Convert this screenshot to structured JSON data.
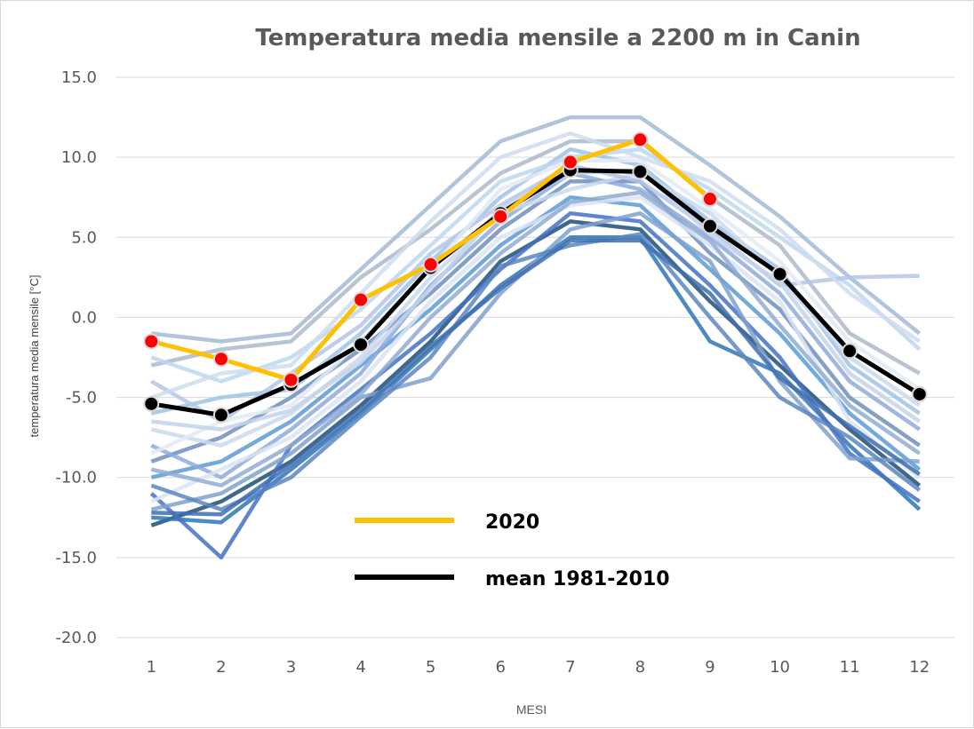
{
  "chart_data": {
    "type": "line",
    "title": "Temperatura media mensile a 2200 m in Canin",
    "xlabel": "MESI",
    "ylabel": "temperatura media mensile [°C]",
    "categories": [
      "1",
      "2",
      "3",
      "4",
      "5",
      "6",
      "7",
      "8",
      "9",
      "10",
      "11",
      "12"
    ],
    "ylim": [
      -20,
      15
    ],
    "yticks": [
      "15.0",
      "10.0",
      "5.0",
      "0.0",
      "-5.0",
      "-10.0",
      "-15.0",
      "-20.0"
    ],
    "grid": true,
    "legend_position": "lower-center",
    "series": [
      {
        "name": "2020",
        "color": "#ffc000",
        "marker_color": "#ff0000",
        "values": [
          -1.5,
          -2.6,
          -3.9,
          1.1,
          3.3,
          6.3,
          9.7,
          11.1,
          7.4,
          null,
          null,
          null
        ]
      },
      {
        "name": "mean 1981-2010",
        "color": "#000000",
        "marker_color": "#000000",
        "values": [
          -5.4,
          -6.1,
          -4.2,
          -1.7,
          3.1,
          6.5,
          9.2,
          9.1,
          5.7,
          2.7,
          -2.1,
          -4.8
        ]
      }
    ],
    "background_series": [
      {
        "color": "#1f4e79",
        "values": [
          -13.0,
          -11.5,
          -9.0,
          -5.5,
          -1.5,
          3.5,
          6.0,
          5.5,
          1.0,
          -3.0,
          -7.0,
          -10.5
        ]
      },
      {
        "color": "#2e75b6",
        "values": [
          -12.5,
          -12.8,
          -9.5,
          -6.0,
          -2.0,
          2.0,
          5.0,
          5.0,
          -1.5,
          -3.5,
          -8.0,
          -12.0
        ]
      },
      {
        "color": "#4472c4",
        "values": [
          -11.0,
          -15.0,
          -8.0,
          -4.5,
          -1.0,
          3.0,
          6.5,
          6.0,
          2.0,
          -2.5,
          -8.5,
          -11.5
        ]
      },
      {
        "color": "#5b9bd5",
        "values": [
          -10.0,
          -9.0,
          -6.5,
          -3.0,
          0.5,
          4.5,
          7.5,
          7.0,
          3.0,
          -1.0,
          -6.0,
          -9.5
        ]
      },
      {
        "color": "#6f8fbf",
        "values": [
          -9.0,
          -7.5,
          -5.0,
          -2.0,
          1.5,
          5.5,
          8.5,
          8.5,
          4.0,
          0.5,
          -5.0,
          -8.0
        ]
      },
      {
        "color": "#8faadc",
        "values": [
          -8.0,
          -10.0,
          -7.0,
          -3.5,
          2.0,
          6.0,
          9.0,
          8.0,
          5.0,
          1.5,
          -4.0,
          -7.0
        ]
      },
      {
        "color": "#9dc3e6",
        "values": [
          -6.0,
          -5.0,
          -4.5,
          -1.0,
          3.5,
          7.5,
          10.5,
          9.5,
          6.0,
          3.0,
          -3.0,
          -6.0
        ]
      },
      {
        "color": "#adb9ca",
        "values": [
          -3.0,
          -2.0,
          -1.5,
          2.5,
          5.5,
          9.0,
          11.0,
          11.0,
          7.5,
          4.5,
          -1.0,
          -3.5
        ]
      },
      {
        "color": "#bdd7ee",
        "values": [
          -2.5,
          -4.0,
          -2.5,
          0.5,
          4.5,
          8.5,
          10.0,
          10.5,
          8.0,
          5.0,
          2.0,
          -2.0
        ]
      },
      {
        "color": "#c9d9ef",
        "values": [
          -7.0,
          -8.0,
          -6.0,
          -2.5,
          2.5,
          6.5,
          8.0,
          9.0,
          6.5,
          2.5,
          -2.5,
          -5.5
        ]
      },
      {
        "color": "#dae3f3",
        "values": [
          -11.5,
          -9.5,
          -7.5,
          -4.0,
          1.0,
          5.0,
          7.0,
          7.5,
          4.5,
          1.0,
          -6.5,
          -10.0
        ]
      },
      {
        "color": "#a5b8d6",
        "values": [
          -1.0,
          -1.5,
          -1.0,
          3.0,
          7.0,
          11.0,
          12.5,
          12.5,
          9.5,
          6.3,
          2.5,
          -1.0
        ]
      },
      {
        "color": "#b4c7e7",
        "values": [
          -4.0,
          -6.5,
          -3.5,
          -0.5,
          4.0,
          7.0,
          9.5,
          8.5,
          5.5,
          2.0,
          2.5,
          2.6
        ]
      },
      {
        "color": "#7fa1cf",
        "values": [
          -12.0,
          -11.0,
          -8.5,
          -5.0,
          -3.8,
          1.5,
          5.5,
          6.5,
          3.5,
          -4.0,
          -8.8,
          -9.0
        ]
      },
      {
        "color": "#5a86c0",
        "values": [
          -10.5,
          -12.0,
          -10.0,
          -6.2,
          -2.5,
          3.2,
          4.5,
          5.2,
          0.0,
          -5.0,
          -7.5,
          -10.8
        ]
      },
      {
        "color": "#cfdcee",
        "values": [
          -5.0,
          -3.5,
          -3.0,
          1.5,
          6.0,
          10.0,
          11.5,
          10.0,
          8.5,
          5.5,
          1.5,
          -1.5
        ]
      },
      {
        "color": "#e2eaf5",
        "values": [
          -8.5,
          -6.5,
          -5.5,
          -1.5,
          3.0,
          8.0,
          9.8,
          9.8,
          6.8,
          3.5,
          -1.5,
          -4.5
        ]
      },
      {
        "color": "#90acd4",
        "values": [
          -9.5,
          -10.5,
          -8.0,
          -4.8,
          0.0,
          4.0,
          7.2,
          7.8,
          4.8,
          -0.5,
          -5.5,
          -8.5
        ]
      },
      {
        "color": "#3f6fb0",
        "values": [
          -12.2,
          -12.3,
          -9.2,
          -5.8,
          -1.8,
          1.8,
          4.8,
          4.8,
          1.5,
          -3.8,
          -6.8,
          -9.8
        ]
      },
      {
        "color": "#c4d3ea",
        "values": [
          -6.5,
          -7.0,
          -5.8,
          -2.8,
          1.8,
          6.8,
          9.0,
          9.2,
          5.2,
          2.2,
          -3.5,
          -6.5
        ]
      }
    ]
  }
}
